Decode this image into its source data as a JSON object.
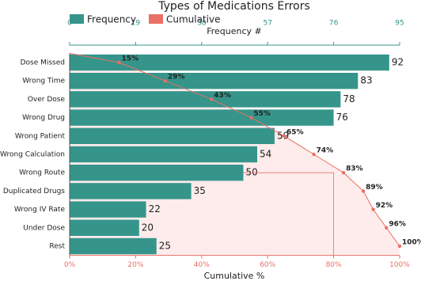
{
  "chart_data": {
    "type": "pareto",
    "title": "Types of Medications Errors",
    "categories": [
      "Dose Missed",
      "Wrong Time",
      "Over Dose",
      "Wrong Drug",
      "Wrong Patient",
      "Wrong Calculation",
      "Wrong Route",
      "Duplicated Drugs",
      "Wrong IV Rate",
      "Under Dose",
      "Rest"
    ],
    "series": [
      {
        "name": "Frequency",
        "color": "#35958b",
        "values": [
          92,
          83,
          78,
          76,
          59,
          54,
          50,
          35,
          22,
          20,
          25
        ]
      },
      {
        "name": "Cumulative",
        "color": "#ea6f66",
        "axis": "x2",
        "area_color": "#fdeceb",
        "values": [
          15,
          29,
          43,
          55,
          65,
          74,
          83,
          89,
          92,
          96,
          100
        ],
        "value_labels": [
          "15%",
          "29%",
          "43%",
          "55%",
          "65%",
          "74%",
          "83%",
          "89%",
          "92%",
          "96%",
          "100%"
        ]
      }
    ],
    "xlabel": "Frequency #",
    "xlim": [
      0,
      95
    ],
    "xticks": [
      0,
      19,
      38,
      57,
      76,
      95
    ],
    "x2label": "Cumulative %",
    "x2lim": [
      0,
      100
    ],
    "x2ticks": [
      {
        "value": 0,
        "label": "0%"
      },
      {
        "value": 20,
        "label": "20%"
      },
      {
        "value": 40,
        "label": "40%"
      },
      {
        "value": 60,
        "label": "60%"
      },
      {
        "value": 80,
        "label": "80%"
      },
      {
        "value": 100,
        "label": "100%"
      }
    ],
    "cutoff": 80
  }
}
